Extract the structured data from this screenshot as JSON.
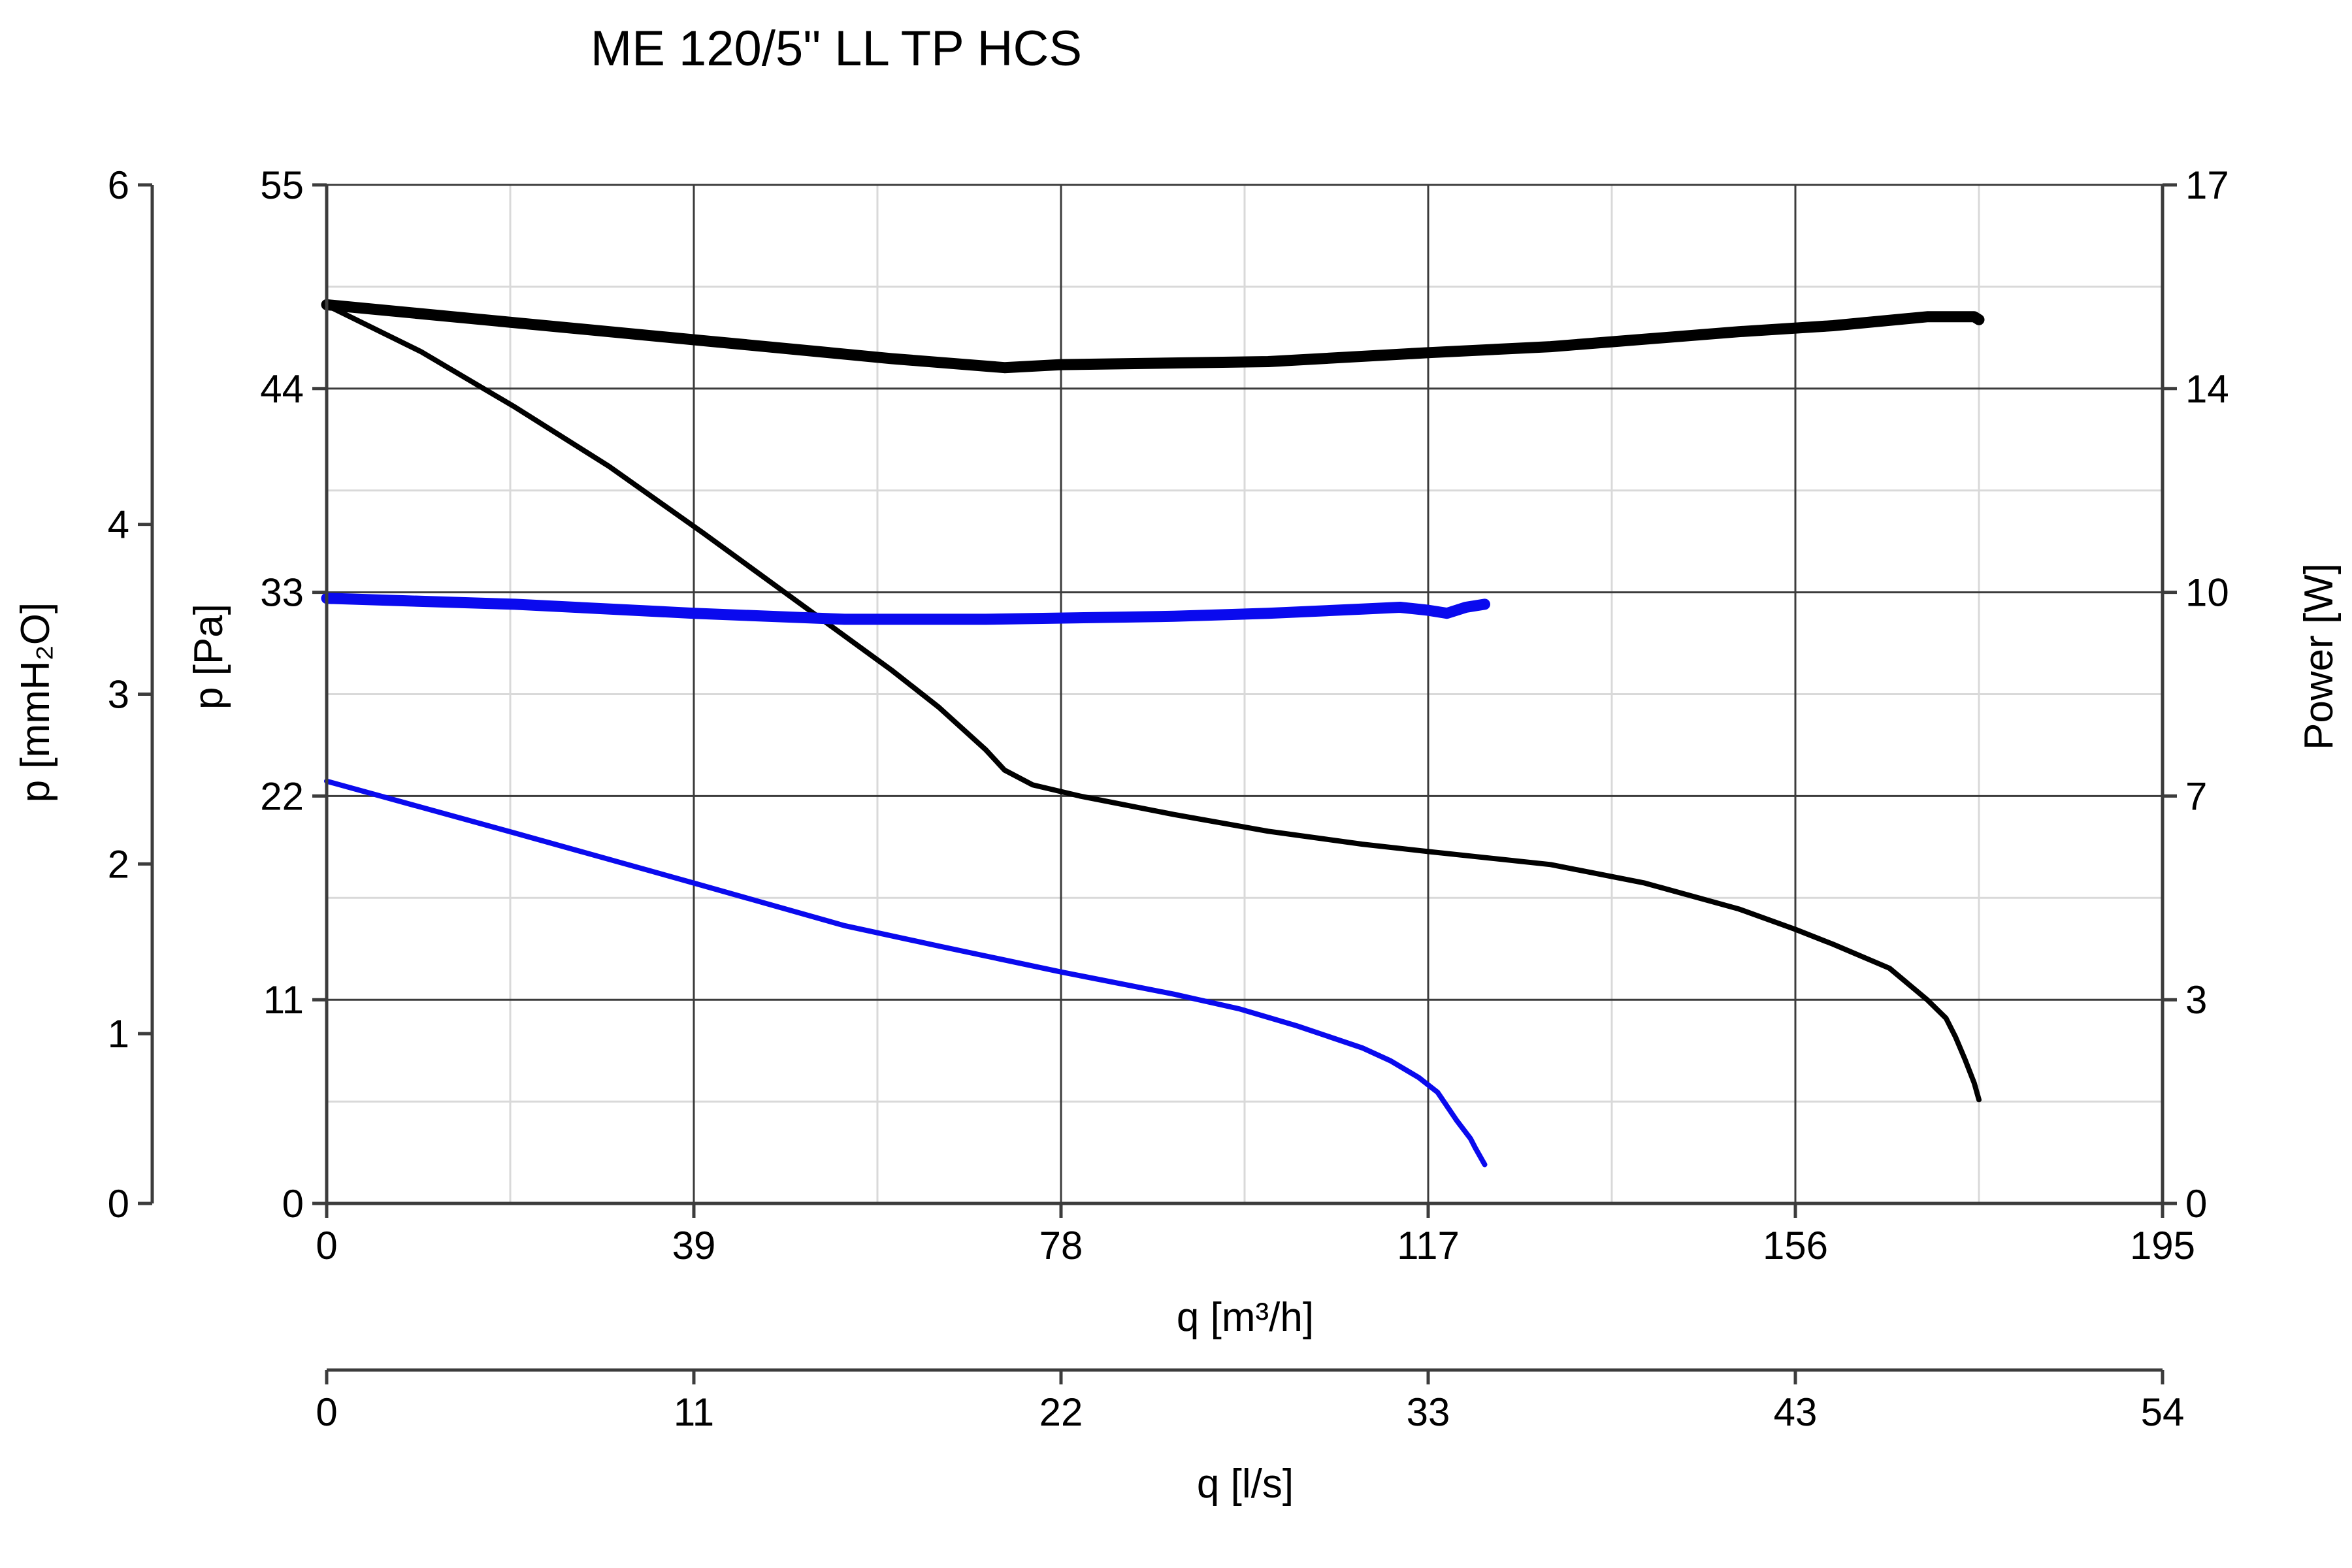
{
  "chart_data": {
    "type": "line",
    "title": "ME 120/5\" LL TP HCS",
    "x_axes": [
      {
        "id": "q_m3h",
        "label": "q [m³/h]",
        "range": [
          0,
          195
        ],
        "ticks": [
          "0",
          "39",
          "78",
          "117",
          "156",
          "195"
        ]
      },
      {
        "id": "q_ls",
        "label": "q [l/s]",
        "range": [
          0,
          54
        ],
        "ticks": [
          "0",
          "11",
          "22",
          "33",
          "43",
          "54"
        ]
      }
    ],
    "y_axes": [
      {
        "id": "p_mmh2o",
        "label": "p [mmH₂O]",
        "range": [
          0,
          6
        ],
        "ticks": [
          "0",
          "1",
          "2",
          "3",
          "4",
          "6"
        ]
      },
      {
        "id": "p_pa",
        "label": "p [Pa]",
        "range": [
          0,
          55
        ],
        "ticks": [
          "0",
          "11",
          "22",
          "33",
          "44",
          "55"
        ]
      },
      {
        "id": "power_w",
        "label": "Power [W]",
        "range": [
          0,
          17
        ],
        "ticks": [
          "0",
          "3",
          "7",
          "10",
          "14",
          "17"
        ]
      }
    ],
    "grid": true,
    "series": [
      {
        "kind": "pressure",
        "axis": "p_pa",
        "color": "#000000",
        "points": [
          [
            0,
            48.5
          ],
          [
            10,
            46.0
          ],
          [
            20,
            43.0
          ],
          [
            30,
            39.8
          ],
          [
            40,
            36.2
          ],
          [
            50,
            32.5
          ],
          [
            60,
            28.8
          ],
          [
            65,
            26.8
          ],
          [
            70,
            24.5
          ],
          [
            72,
            23.4
          ],
          [
            75,
            22.6
          ],
          [
            80,
            22.0
          ],
          [
            90,
            21.0
          ],
          [
            100,
            20.1
          ],
          [
            110,
            19.4
          ],
          [
            117,
            19.0
          ],
          [
            130,
            18.3
          ],
          [
            140,
            17.3
          ],
          [
            150,
            15.9
          ],
          [
            156,
            14.8
          ],
          [
            160,
            14.0
          ],
          [
            166,
            12.7
          ],
          [
            170,
            11.0
          ],
          [
            172,
            10.0
          ],
          [
            173,
            9.0
          ],
          [
            174,
            7.8
          ],
          [
            175,
            6.5
          ],
          [
            175.5,
            5.6
          ]
        ]
      },
      {
        "kind": "power",
        "axis": "power_w",
        "color": "#000000",
        "points": [
          [
            0,
            15.0
          ],
          [
            20,
            14.7
          ],
          [
            40,
            14.4
          ],
          [
            60,
            14.1
          ],
          [
            72,
            13.95
          ],
          [
            78,
            14.0
          ],
          [
            100,
            14.05
          ],
          [
            117,
            14.2
          ],
          [
            130,
            14.3
          ],
          [
            150,
            14.55
          ],
          [
            160,
            14.65
          ],
          [
            170,
            14.8
          ],
          [
            175,
            14.8
          ],
          [
            175.5,
            14.75
          ]
        ]
      },
      {
        "kind": "pressure",
        "axis": "p_pa",
        "color": "#0a0aee",
        "points": [
          [
            0,
            22.8
          ],
          [
            20,
            20.0
          ],
          [
            39,
            17.3
          ],
          [
            55,
            15.0
          ],
          [
            65,
            13.9
          ],
          [
            78,
            12.5
          ],
          [
            90,
            11.3
          ],
          [
            97,
            10.5
          ],
          [
            103,
            9.6
          ],
          [
            110,
            8.4
          ],
          [
            113,
            7.7
          ],
          [
            116,
            6.8
          ],
          [
            118,
            6.0
          ],
          [
            120,
            4.5
          ],
          [
            121.5,
            3.5
          ],
          [
            122,
            3.0
          ],
          [
            123,
            2.1
          ]
        ]
      },
      {
        "kind": "power",
        "axis": "power_w",
        "color": "#0a0aee",
        "points": [
          [
            0,
            10.1
          ],
          [
            20,
            10.0
          ],
          [
            39,
            9.85
          ],
          [
            55,
            9.75
          ],
          [
            70,
            9.75
          ],
          [
            90,
            9.8
          ],
          [
            100,
            9.85
          ],
          [
            110,
            9.92
          ],
          [
            114,
            9.95
          ],
          [
            117,
            9.9
          ],
          [
            119,
            9.85
          ],
          [
            121,
            9.95
          ],
          [
            123,
            10.0
          ]
        ]
      }
    ]
  }
}
